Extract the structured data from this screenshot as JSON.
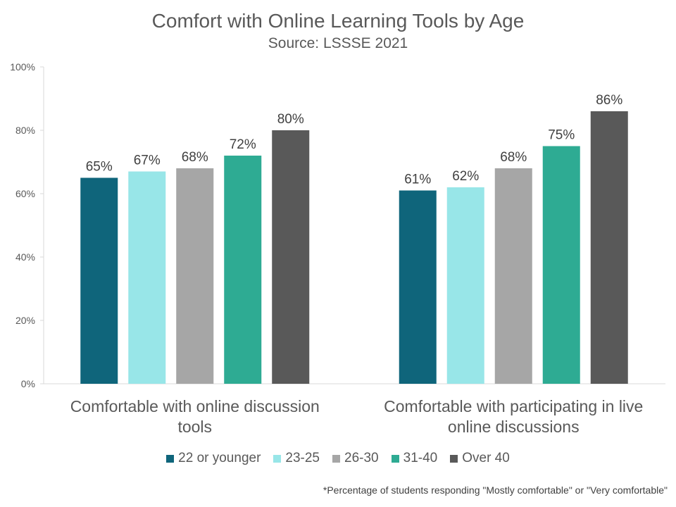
{
  "chart_data": {
    "type": "bar",
    "title": "Comfort with Online Learning Tools by Age",
    "subtitle": "Source: LSSSE 2021",
    "categories": [
      "Comfortable with online discussion tools",
      "Comfortable with participating in live online discussions"
    ],
    "category_lines": [
      [
        "Comfortable with online discussion",
        "tools"
      ],
      [
        "Comfortable with participating in live",
        "online discussions"
      ]
    ],
    "series": [
      {
        "name": "22 or younger",
        "color": "#0f657b",
        "values": [
          65,
          61
        ]
      },
      {
        "name": "23-25",
        "color": "#98e6e8",
        "values": [
          67,
          62
        ]
      },
      {
        "name": "26-30",
        "color": "#a6a6a6",
        "values": [
          68,
          68
        ]
      },
      {
        "name": "31-40",
        "color": "#2eab93",
        "values": [
          72,
          75
        ]
      },
      {
        "name": "Over 40",
        "color": "#595959",
        "values": [
          80,
          86
        ]
      }
    ],
    "value_labels": [
      [
        "65%",
        "61%"
      ],
      [
        "67%",
        "62%"
      ],
      [
        "68%",
        "68%"
      ],
      [
        "72%",
        "75%"
      ],
      [
        "80%",
        "86%"
      ]
    ],
    "yticks": [
      0,
      20,
      40,
      60,
      80,
      100
    ],
    "ytick_labels": [
      "0%",
      "20%",
      "40%",
      "60%",
      "80%",
      "100%"
    ],
    "ylim": [
      0,
      100
    ],
    "grid": false,
    "legend_position": "bottom"
  },
  "footnote": "*Percentage of students responding \"Mostly comfortable\" or \"Very comfortable\""
}
